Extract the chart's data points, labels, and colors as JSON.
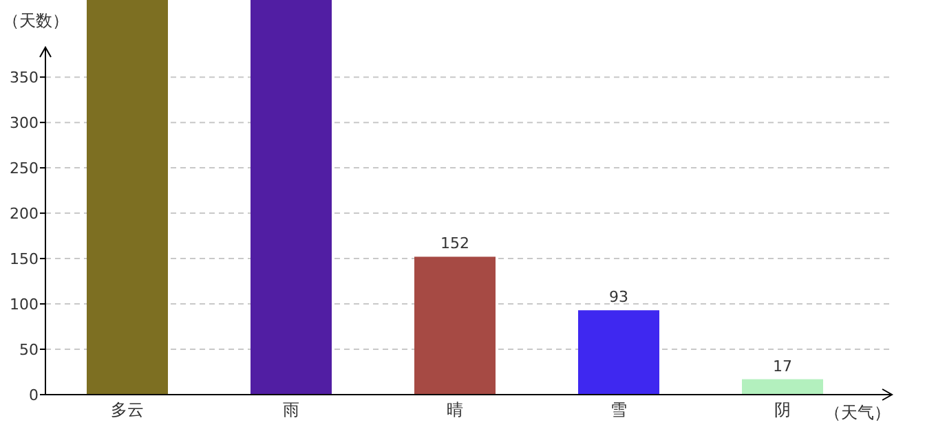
{
  "chart_data": {
    "type": "bar",
    "xlabel": "（天气）",
    "ylabel": "（天数）",
    "categories": [
      "多云",
      "雨",
      "晴",
      "雪",
      "阴"
    ],
    "values": [
      435,
      435,
      152,
      93,
      17
    ],
    "value_labels": [
      null,
      null,
      "152",
      "93",
      "17"
    ],
    "colors": [
      "#7d6f22",
      "#511ea3",
      "#a64a44",
      "#3f28f0",
      "#b3f0be"
    ],
    "ylim": [
      0,
      435
    ],
    "yticks": [
      0,
      50,
      100,
      150,
      200,
      250,
      300,
      350
    ],
    "grid": "y"
  }
}
